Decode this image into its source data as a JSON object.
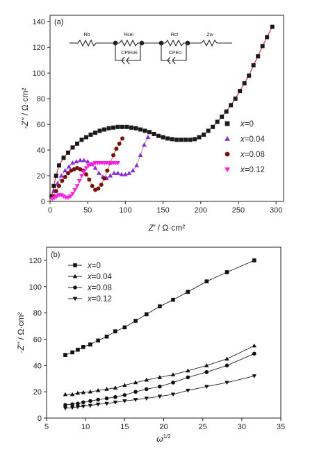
{
  "chart_data": [
    {
      "type": "scatter",
      "panel_label": "(a)",
      "xlabel_main": "Z'",
      "xlabel_unit": "/ Ω·cm²",
      "ylabel_main": "-Z''",
      "ylabel_unit": "/ Ω·cm²",
      "xlim": [
        0,
        310
      ],
      "ylim": [
        0,
        145
      ],
      "xticks": [
        "0",
        "50",
        "100",
        "150",
        "200",
        "250",
        "300"
      ],
      "yticks": [
        "0",
        "20",
        "40",
        "60",
        "80",
        "100",
        "120",
        "140"
      ],
      "legend_position": "center-right",
      "grid": false,
      "circuit": {
        "labels": [
          "Rb",
          "Rsei",
          "CPEsei",
          "Rct",
          "CPEo",
          "Zw"
        ]
      },
      "series": [
        {
          "name": "x=0",
          "marker": "square",
          "color": "#1a1a1a",
          "x": [
            2,
            5,
            8,
            12,
            18,
            24,
            30,
            36,
            42,
            48,
            54,
            60,
            66,
            72,
            78,
            84,
            90,
            96,
            102,
            108,
            114,
            120,
            126,
            132,
            138,
            144,
            150,
            156,
            162,
            168,
            174,
            180,
            186,
            192,
            198,
            204,
            210,
            216,
            222,
            228,
            234,
            240,
            246,
            252,
            258,
            264,
            270,
            276,
            282,
            288,
            295
          ],
          "y": [
            4,
            12,
            20,
            28,
            34,
            38,
            42,
            45,
            48,
            50,
            52,
            53.5,
            55,
            56,
            57,
            57.5,
            58,
            58,
            58,
            57.5,
            57,
            56,
            55,
            54,
            52.5,
            51,
            50,
            49,
            48.5,
            48,
            48,
            48,
            48,
            48.5,
            50,
            52,
            55,
            58,
            62,
            66,
            70,
            75,
            80,
            86,
            92,
            98,
            106,
            113,
            121,
            128,
            136
          ]
        },
        {
          "name": "x=0.04",
          "marker": "triangle-up",
          "color": "#8a2be2",
          "x": [
            5,
            10,
            15,
            20,
            25,
            30,
            35,
            40,
            45,
            50,
            55,
            60,
            65,
            70,
            75,
            80,
            85,
            90,
            95,
            100,
            105,
            110,
            115,
            120,
            125,
            130
          ],
          "y": [
            8,
            14,
            20,
            24,
            27,
            30,
            31,
            32,
            32,
            31,
            29,
            26,
            22,
            19,
            18,
            20,
            22,
            22,
            21,
            21,
            22,
            24,
            28,
            36,
            44,
            50
          ]
        },
        {
          "name": "x=0.08",
          "marker": "circle",
          "color": "#7b1010",
          "x": [
            4,
            8,
            12,
            16,
            20,
            24,
            28,
            32,
            36,
            40,
            44,
            48,
            52,
            56,
            60,
            64,
            68,
            72,
            76,
            80,
            84,
            88,
            92,
            96
          ],
          "y": [
            4,
            8,
            12,
            16,
            19,
            22,
            24,
            25,
            26,
            25,
            24,
            21,
            17,
            12,
            9,
            10,
            13,
            18,
            24,
            30,
            36,
            41,
            45,
            49
          ]
        },
        {
          "name": "x=0.12",
          "marker": "triangle-down",
          "color": "#ff1fe0",
          "x": [
            3,
            6,
            9,
            12,
            15,
            18,
            21,
            24,
            27,
            30,
            33,
            36,
            39,
            42,
            45,
            48,
            51,
            54,
            57,
            60,
            63,
            66,
            69,
            72,
            75,
            78,
            81,
            84,
            87,
            90
          ],
          "y": [
            2,
            3,
            4,
            5,
            5,
            4,
            3,
            3,
            4,
            6,
            9,
            12,
            16,
            20,
            23,
            26,
            28,
            29,
            29,
            30,
            30,
            30,
            30,
            30,
            30,
            30,
            30,
            30,
            30,
            30
          ]
        }
      ]
    },
    {
      "type": "line",
      "panel_label": "(b)",
      "xlabel_main": "ω",
      "xlabel_sup": "1/2",
      "ylabel_main": "-Z''",
      "ylabel_unit": "/ Ω·cm²",
      "xlim": [
        5,
        35
      ],
      "ylim": [
        0,
        130
      ],
      "xticks": [
        "5",
        "10",
        "15",
        "20",
        "25",
        "30",
        "35"
      ],
      "yticks": [
        "0",
        "20",
        "40",
        "60",
        "80",
        "100",
        "120"
      ],
      "legend_position": "top-left",
      "grid": false,
      "x": [
        7.4,
        8.3,
        9.0,
        9.7,
        10.6,
        11.6,
        12.7,
        13.8,
        15.0,
        16.4,
        17.8,
        19.5,
        21.2,
        23.1,
        25.5,
        28.1,
        31.6
      ],
      "series": [
        {
          "name": "x=0",
          "marker": "square",
          "y": [
            48,
            50,
            52,
            54,
            56,
            59,
            62,
            66,
            69,
            74,
            79,
            85,
            90,
            96,
            104,
            111,
            120
          ]
        },
        {
          "name": "x=0.04",
          "marker": "triangle-up",
          "y": [
            18,
            18,
            19,
            19.5,
            20,
            21,
            22,
            23,
            25,
            27,
            29,
            31,
            33,
            36,
            40,
            45,
            55
          ]
        },
        {
          "name": "x=0.08",
          "marker": "circle",
          "y": [
            10,
            10.5,
            11,
            12,
            13,
            14,
            15,
            16,
            17.5,
            20,
            22,
            24,
            27,
            31,
            35,
            40,
            49
          ]
        },
        {
          "name": "x=0.12",
          "marker": "triangle-down",
          "y": [
            7.5,
            8,
            8.5,
            9,
            9.5,
            10.5,
            11,
            12,
            13,
            14,
            15,
            16.5,
            18,
            21,
            24,
            27,
            32
          ]
        }
      ]
    }
  ]
}
